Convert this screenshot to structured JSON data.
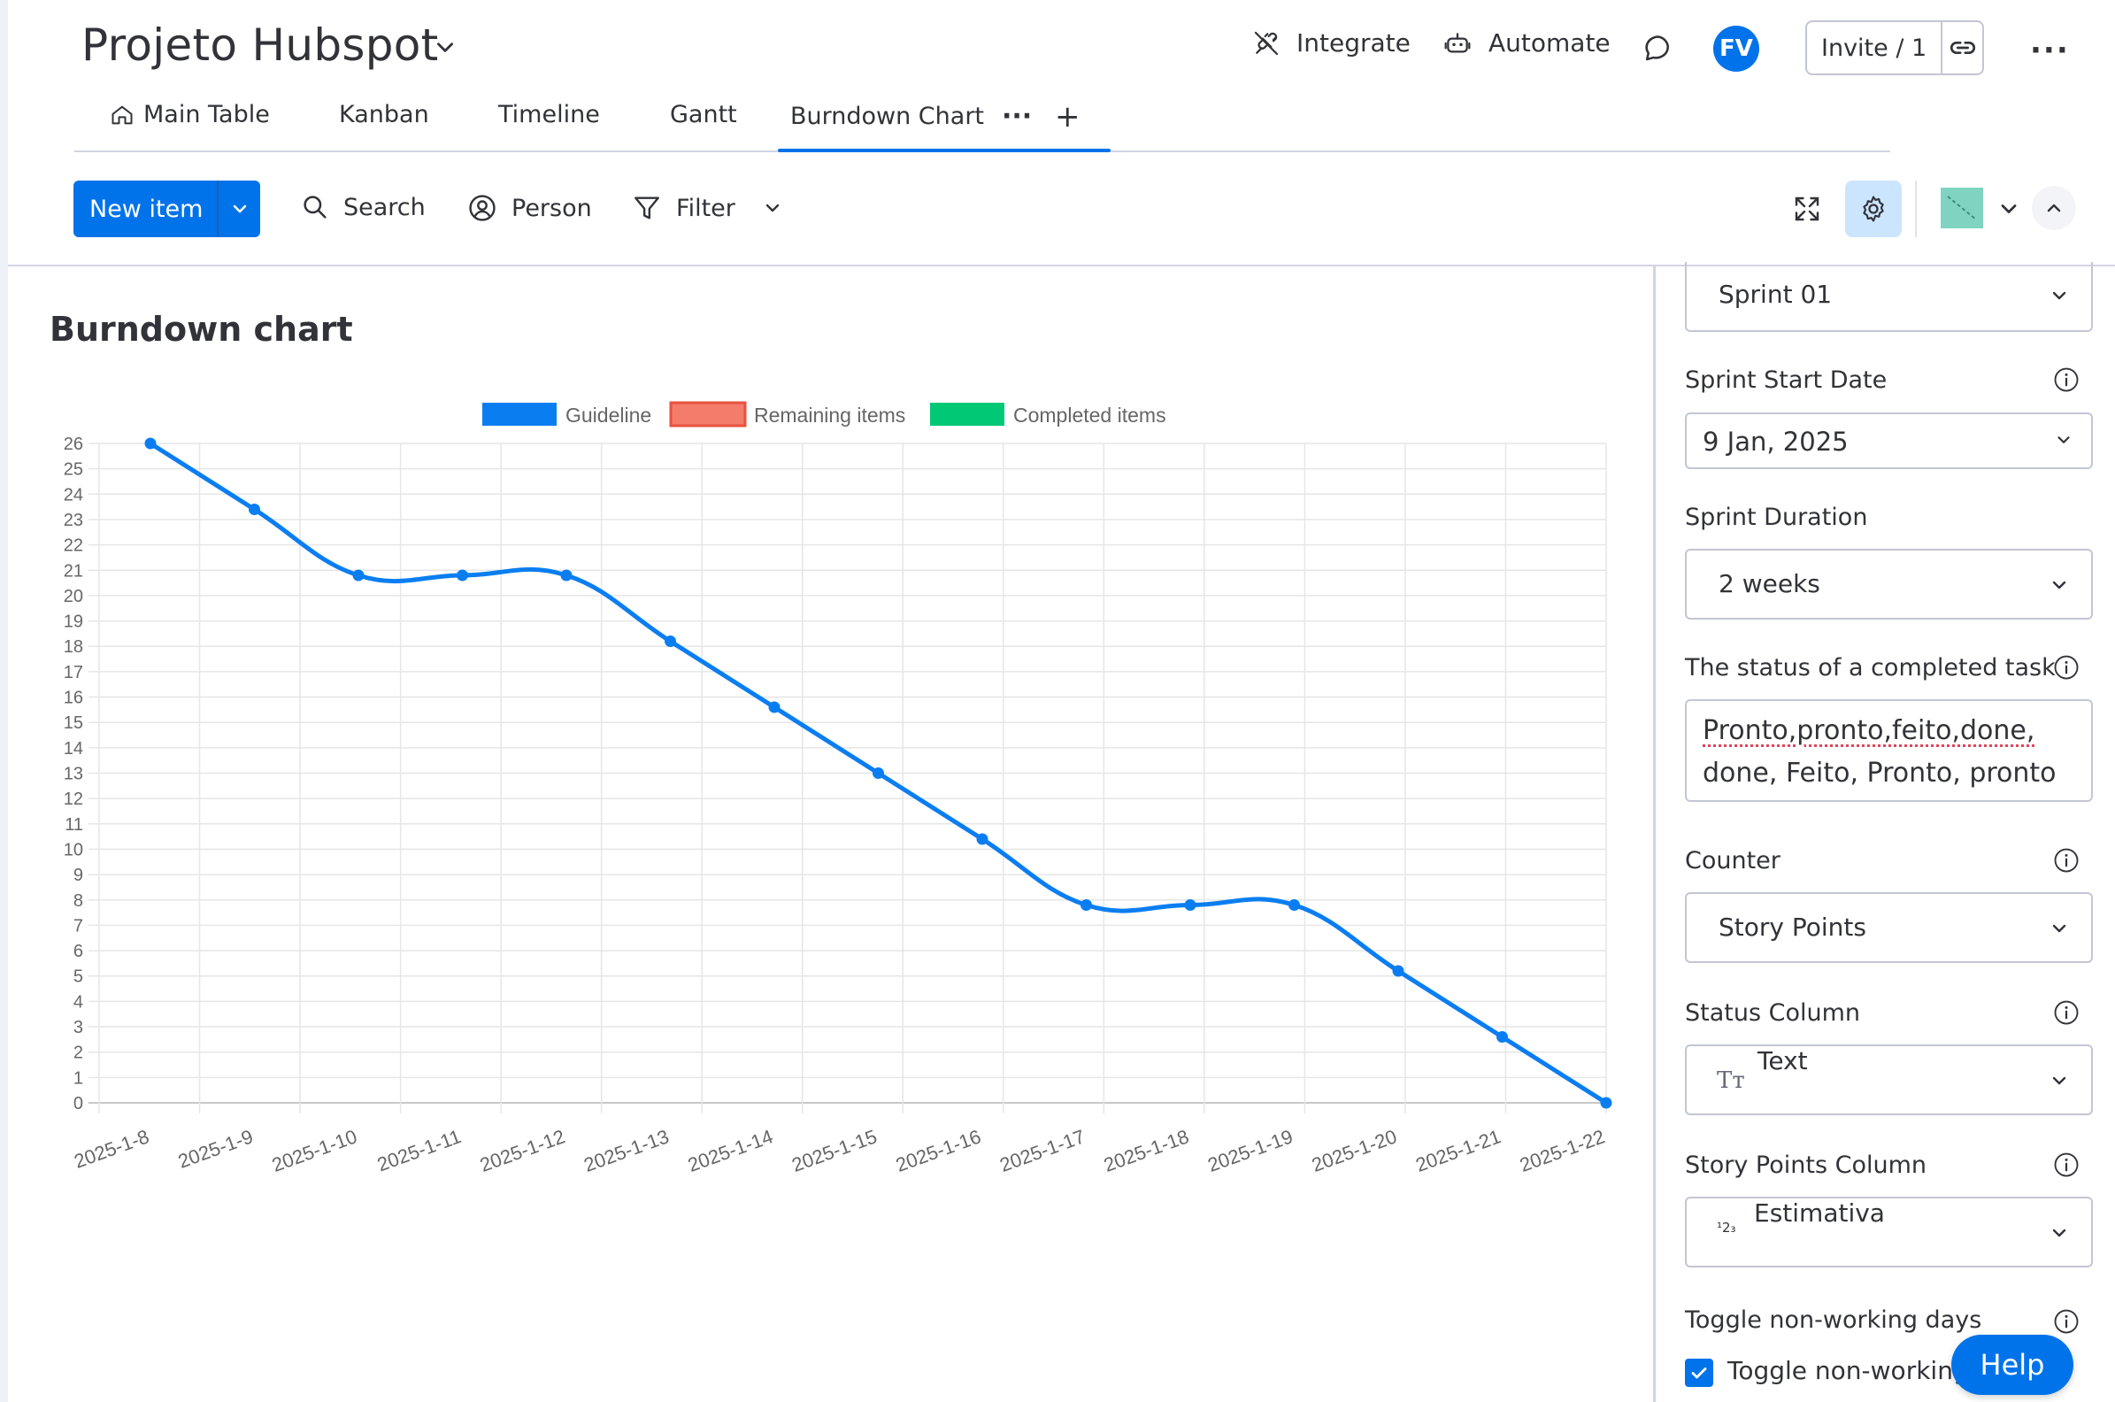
{
  "header": {
    "board_title": "Projeto Hubspot",
    "integrate_label": "Integrate",
    "automate_label": "Automate",
    "avatar_initials": "FV",
    "invite_label": "Invite / 1"
  },
  "tabs": [
    {
      "label": "Main Table"
    },
    {
      "label": "Kanban"
    },
    {
      "label": "Timeline"
    },
    {
      "label": "Gantt"
    },
    {
      "label": "Burndown Chart",
      "active": true
    }
  ],
  "toolbar": {
    "new_item_label": "New item",
    "search_label": "Search",
    "person_label": "Person",
    "filter_label": "Filter"
  },
  "chart_title": "Burndown chart",
  "chart_data": {
    "type": "line",
    "title": "",
    "xlabel": "",
    "ylabel": "",
    "legend": [
      "Guideline",
      "Remaining items",
      "Completed items"
    ],
    "legend_colors": [
      "#0a7ef1",
      "#f47c6a",
      "#00c875"
    ],
    "legend_placement": "top-center",
    "grid": true,
    "ylim": [
      0,
      26
    ],
    "categories": [
      "2025-1-8",
      "2025-1-9",
      "2025-1-10",
      "2025-1-11",
      "2025-1-12",
      "2025-1-13",
      "2025-1-14",
      "2025-1-15",
      "2025-1-16",
      "2025-1-17",
      "2025-1-18",
      "2025-1-19",
      "2025-1-20",
      "2025-1-21",
      "2025-1-22"
    ],
    "series": [
      {
        "name": "Guideline",
        "color": "#0a7ef1",
        "values": [
          26,
          23.4,
          20.8,
          20.8,
          20.8,
          18.2,
          15.6,
          13.0,
          10.4,
          7.8,
          7.8,
          7.8,
          5.2,
          2.6,
          0
        ]
      }
    ]
  },
  "panel": {
    "sprint_value": "Sprint 01",
    "start_label": "Sprint Start Date",
    "start_value": "9 Jan, 2025",
    "duration_label": "Sprint Duration",
    "duration_value": "2 weeks",
    "status_label": "The status of a completed task",
    "status_line1": "Pronto,pronto,feito,done,",
    "status_line2": "done, Feito, Pronto, pronto",
    "counter_label": "Counter",
    "counter_value": "Story Points",
    "status_column_label": "Status Column",
    "status_column_value": "Text",
    "story_points_column_label": "Story Points Column",
    "story_points_column_value": "Estimativa",
    "toggle_label": "Toggle non-working days",
    "toggle_checkbox_label": "Toggle non-working",
    "toggle_checked": true
  },
  "help_label": "Help",
  "colors": {
    "accent": "#0073ea",
    "guideline": "#0a7ef1",
    "remaining": "#f47c6a",
    "completed": "#00c875"
  }
}
